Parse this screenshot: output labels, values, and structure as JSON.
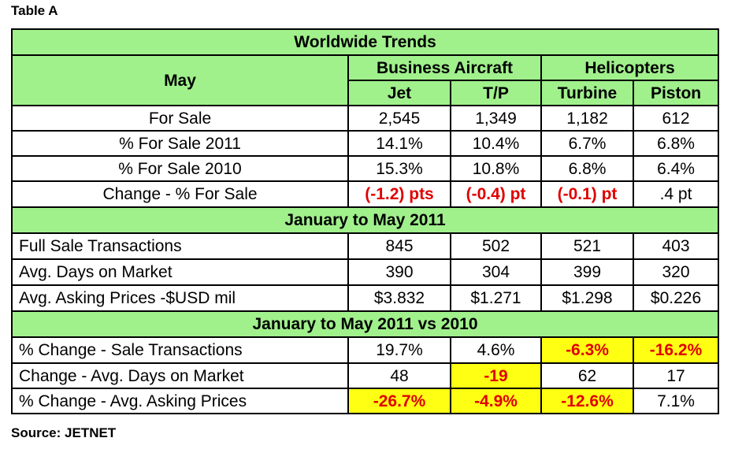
{
  "caption": "Table A",
  "title": "Worldwide Trends",
  "corner_label": "May",
  "group_business": "Business Aircraft",
  "group_helicopters": "Helicopters",
  "columns": [
    "Jet",
    "T/P",
    "Turbine",
    "Piston"
  ],
  "may_rows": [
    {
      "label": "For Sale",
      "values": [
        "2,545",
        "1,349",
        "1,182",
        "612"
      ]
    },
    {
      "label": "% For Sale 2011",
      "values": [
        "14.1%",
        "10.4%",
        "6.7%",
        "6.8%"
      ]
    },
    {
      "label": "% For Sale 2010",
      "values": [
        "15.3%",
        "10.8%",
        "6.8%",
        "6.4%"
      ]
    },
    {
      "label": "Change - % For Sale",
      "values": [
        "(-1.2) pts",
        "(-0.4) pt",
        "(-0.1) pt",
        ".4 pt"
      ]
    }
  ],
  "section2": "January to May 2011",
  "ytd_rows": [
    {
      "label": "Full Sale Transactions",
      "values": [
        "845",
        "502",
        "521",
        "403"
      ]
    },
    {
      "label": "Avg. Days on Market",
      "values": [
        "390",
        "304",
        "399",
        "320"
      ]
    },
    {
      "label": "Avg. Asking Prices -$USD mil",
      "values": [
        "$3.832",
        "$1.271",
        "$1.298",
        "$0.226"
      ]
    }
  ],
  "section3": "January to May 2011 vs 2010",
  "cmp_rows": [
    {
      "label": "% Change  - Sale Transactions",
      "values": [
        "19.7%",
        "4.6%",
        "-6.3%",
        "-16.2%"
      ]
    },
    {
      "label": "Change -  Avg. Days on Market",
      "values": [
        "48",
        "-19",
        "62",
        "17"
      ]
    },
    {
      "label": "% Change - Avg. Asking Prices",
      "values": [
        "-26.7%",
        "-4.9%",
        "-12.6%",
        "7.1%"
      ]
    }
  ],
  "source": "Source: JETNET",
  "colors": {
    "header_green": "#a0f08c",
    "highlight_yellow": "#ffff14",
    "negative_red": "#e00000"
  }
}
